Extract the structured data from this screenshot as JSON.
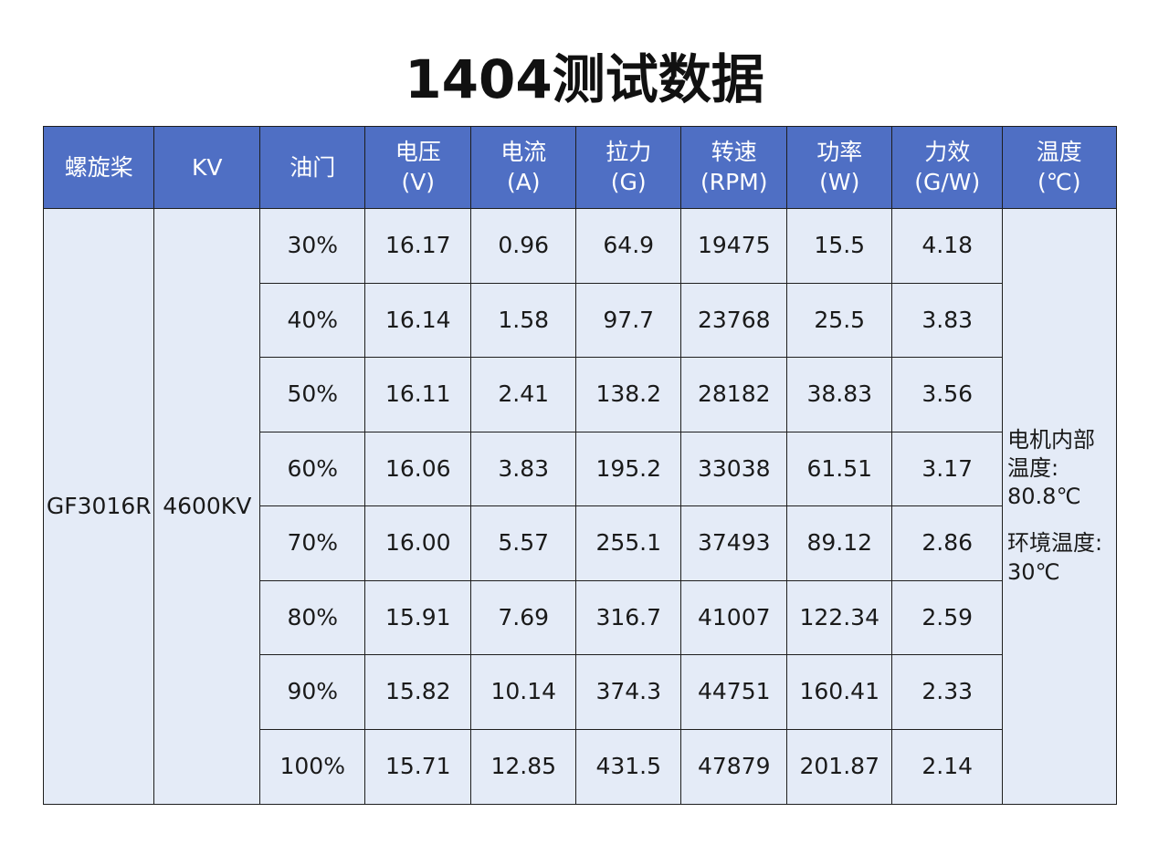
{
  "title": "1404测试数据",
  "table": {
    "header": [
      [
        "螺旋桨"
      ],
      [
        "KV"
      ],
      [
        "油门"
      ],
      [
        "电压",
        "(V)"
      ],
      [
        "电流",
        "(A)"
      ],
      [
        "拉力",
        "(G)"
      ],
      [
        "转速",
        "(RPM)"
      ],
      [
        "功率",
        "(W)"
      ],
      [
        "力效",
        "(G/W)"
      ],
      [
        "温度",
        "(℃)"
      ]
    ],
    "propeller": "GF3016R",
    "kv": "4600KV",
    "rows": [
      [
        "30%",
        "16.17",
        "0.96",
        "64.9",
        "19475",
        "15.5",
        "4.18"
      ],
      [
        "40%",
        "16.14",
        "1.58",
        "97.7",
        "23768",
        "25.5",
        "3.83"
      ],
      [
        "50%",
        "16.11",
        "2.41",
        "138.2",
        "28182",
        "38.83",
        "3.56"
      ],
      [
        "60%",
        "16.06",
        "3.83",
        "195.2",
        "33038",
        "61.51",
        "3.17"
      ],
      [
        "70%",
        "16.00",
        "5.57",
        "255.1",
        "37493",
        "89.12",
        "2.86"
      ],
      [
        "80%",
        "15.91",
        "7.69",
        "316.7",
        "41007",
        "122.34",
        "2.59"
      ],
      [
        "90%",
        "15.82",
        "10.14",
        "374.3",
        "44751",
        "160.41",
        "2.33"
      ],
      [
        "100%",
        "15.71",
        "12.85",
        "431.5",
        "47879",
        "201.87",
        "2.14"
      ]
    ],
    "note": [
      [
        "电机内部",
        "温度:",
        "80.8℃"
      ],
      [
        "环境温度:",
        "30℃"
      ]
    ]
  }
}
